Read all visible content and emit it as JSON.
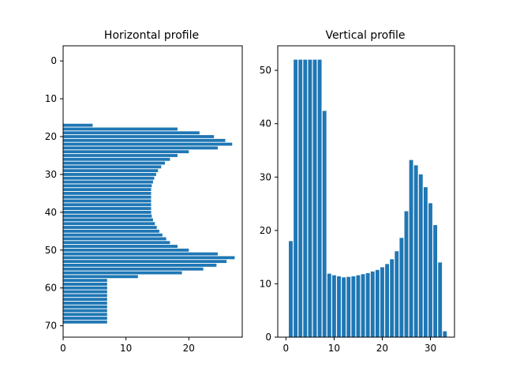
{
  "chart_data": [
    {
      "type": "bar",
      "orientation": "horizontal",
      "title": "Horizontal profile",
      "xlabel": "",
      "ylabel": "",
      "xlim": [
        0,
        28.5
      ],
      "ylim": [
        73,
        -4
      ],
      "y_inverted": true,
      "xticks": [
        0,
        10,
        20
      ],
      "yticks": [
        0,
        10,
        20,
        30,
        40,
        50,
        60,
        70
      ],
      "bar_color": "#1f77b4",
      "grid": false,
      "y": [
        17,
        18,
        19,
        20,
        21,
        22,
        23,
        24,
        25,
        26,
        27,
        28,
        29,
        30,
        31,
        32,
        33,
        34,
        35,
        36,
        37,
        38,
        39,
        40,
        41,
        42,
        43,
        44,
        45,
        46,
        47,
        48,
        49,
        50,
        51,
        52,
        53,
        54,
        55,
        56,
        57,
        58,
        59,
        60,
        61,
        62,
        63,
        64,
        65,
        66,
        67,
        68,
        69
      ],
      "values": [
        4.7,
        18.2,
        21.7,
        24,
        25.8,
        26.9,
        24.6,
        20,
        18.2,
        17,
        16.2,
        15.6,
        15.1,
        14.8,
        14.5,
        14.3,
        14.1,
        14,
        14,
        14,
        14,
        14,
        14,
        14,
        14.1,
        14.3,
        14.6,
        14.9,
        15.3,
        15.8,
        16.4,
        17,
        18.2,
        20,
        24.6,
        27.3,
        26,
        24.4,
        22.3,
        18.9,
        11.9,
        7,
        7,
        7,
        7,
        7,
        7,
        7,
        7,
        7,
        7,
        7,
        7
      ]
    },
    {
      "type": "bar",
      "orientation": "vertical",
      "title": "Vertical profile",
      "xlabel": "",
      "ylabel": "",
      "xlim": [
        -1.7,
        35
      ],
      "ylim": [
        0,
        54.6
      ],
      "xticks": [
        0,
        10,
        20,
        30
      ],
      "yticks": [
        0,
        10,
        20,
        30,
        40,
        50
      ],
      "bar_color": "#1f77b4",
      "grid": false,
      "x": [
        1,
        2,
        3,
        4,
        5,
        6,
        7,
        8,
        9,
        10,
        11,
        12,
        13,
        14,
        15,
        16,
        17,
        18,
        19,
        20,
        21,
        22,
        23,
        24,
        25,
        26,
        27,
        28,
        29,
        30,
        31,
        32,
        33
      ],
      "values": [
        18,
        52,
        52,
        52,
        52,
        52,
        52,
        42.4,
        11.9,
        11.6,
        11.4,
        11.2,
        11.3,
        11.4,
        11.6,
        11.8,
        12,
        12.3,
        12.6,
        13.1,
        13.7,
        14.6,
        16.1,
        18.6,
        23.6,
        33.2,
        32.2,
        30.5,
        28.1,
        25.1,
        21,
        14,
        1.1
      ]
    }
  ]
}
